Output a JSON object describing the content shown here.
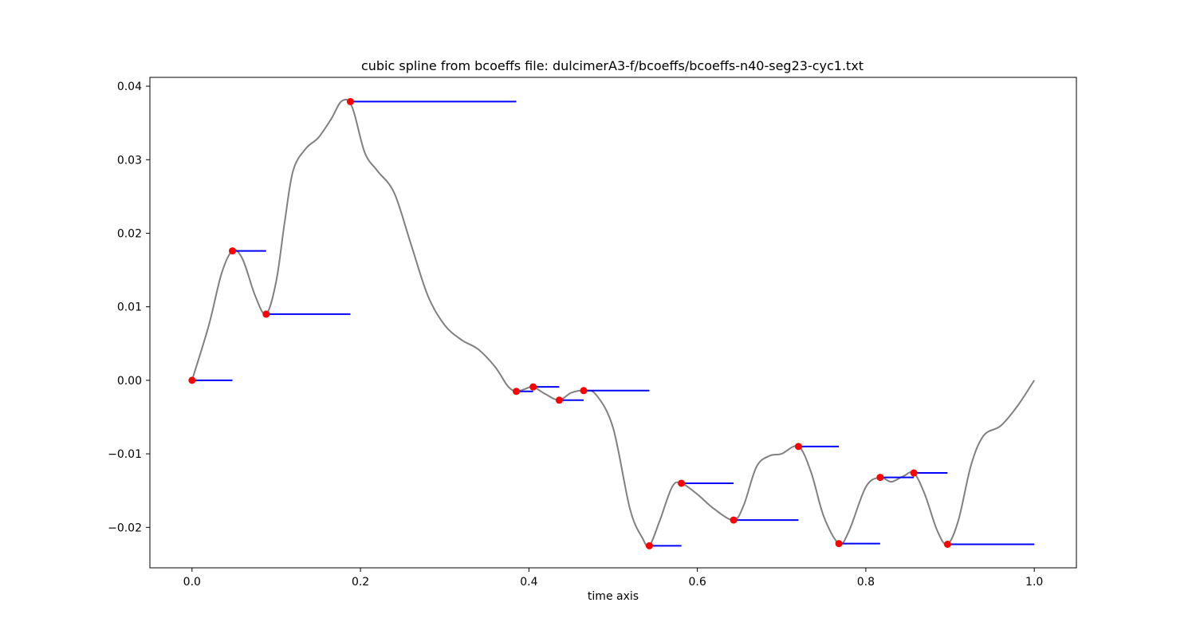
{
  "chart_data": {
    "type": "line",
    "title": "cubic spline from bcoeffs file: dulcimerA3-f/bcoeffs/bcoeffs-n40-seg23-cyc1.txt",
    "xlabel": "time axis",
    "ylabel": "",
    "xlim": [
      -0.05,
      1.05
    ],
    "ylim": [
      -0.0255,
      0.0412
    ],
    "x_ticks": [
      0.0,
      0.2,
      0.4,
      0.6,
      0.8,
      1.0
    ],
    "x_tick_labels": [
      "0.0",
      "0.2",
      "0.4",
      "0.6",
      "0.8",
      "1.0"
    ],
    "y_ticks": [
      -0.02,
      -0.01,
      0.0,
      0.01,
      0.02,
      0.03,
      0.04
    ],
    "y_tick_labels": [
      "−0.02",
      "−0.01",
      "0.00",
      "0.01",
      "0.02",
      "0.03",
      "0.04"
    ],
    "grid": false,
    "series": [
      {
        "kind": "spline",
        "color": "#808080",
        "points": [
          [
            0.0,
            0.0
          ],
          [
            0.02,
            0.0075
          ],
          [
            0.035,
            0.0145
          ],
          [
            0.048,
            0.0176
          ],
          [
            0.06,
            0.0165
          ],
          [
            0.075,
            0.0115
          ],
          [
            0.088,
            0.009
          ],
          [
            0.1,
            0.0135
          ],
          [
            0.11,
            0.0215
          ],
          [
            0.12,
            0.0285
          ],
          [
            0.135,
            0.0315
          ],
          [
            0.15,
            0.033
          ],
          [
            0.165,
            0.0355
          ],
          [
            0.178,
            0.038
          ],
          [
            0.19,
            0.0372
          ],
          [
            0.205,
            0.031
          ],
          [
            0.22,
            0.0285
          ],
          [
            0.24,
            0.0255
          ],
          [
            0.26,
            0.0185
          ],
          [
            0.28,
            0.0115
          ],
          [
            0.3,
            0.0075
          ],
          [
            0.32,
            0.0055
          ],
          [
            0.34,
            0.0042
          ],
          [
            0.36,
            0.0018
          ],
          [
            0.375,
            -0.0008
          ],
          [
            0.385,
            -0.0015
          ],
          [
            0.395,
            -0.0012
          ],
          [
            0.405,
            -0.0009
          ],
          [
            0.42,
            -0.0019
          ],
          [
            0.436,
            -0.0027
          ],
          [
            0.45,
            -0.0017
          ],
          [
            0.465,
            -0.0014
          ],
          [
            0.48,
            -0.002
          ],
          [
            0.5,
            -0.0065
          ],
          [
            0.52,
            -0.0175
          ],
          [
            0.535,
            -0.0215
          ],
          [
            0.543,
            -0.0225
          ],
          [
            0.555,
            -0.0192
          ],
          [
            0.57,
            -0.0145
          ],
          [
            0.581,
            -0.014
          ],
          [
            0.6,
            -0.0155
          ],
          [
            0.62,
            -0.0175
          ],
          [
            0.643,
            -0.019
          ],
          [
            0.655,
            -0.017
          ],
          [
            0.67,
            -0.0118
          ],
          [
            0.685,
            -0.0103
          ],
          [
            0.7,
            -0.01
          ],
          [
            0.72,
            -0.009
          ],
          [
            0.735,
            -0.0125
          ],
          [
            0.75,
            -0.0185
          ],
          [
            0.768,
            -0.0222
          ],
          [
            0.78,
            -0.0205
          ],
          [
            0.8,
            -0.0145
          ],
          [
            0.817,
            -0.0132
          ],
          [
            0.83,
            -0.0138
          ],
          [
            0.845,
            -0.013
          ],
          [
            0.857,
            -0.0126
          ],
          [
            0.87,
            -0.0155
          ],
          [
            0.885,
            -0.0205
          ],
          [
            0.897,
            -0.0223
          ],
          [
            0.91,
            -0.019
          ],
          [
            0.925,
            -0.0115
          ],
          [
            0.94,
            -0.0075
          ],
          [
            0.96,
            -0.0062
          ],
          [
            0.98,
            -0.0035
          ],
          [
            1.0,
            0.0
          ]
        ]
      },
      {
        "kind": "knot-segments",
        "color": "#0000ff",
        "segments": [
          [
            0.0,
            0.048,
            0.0
          ],
          [
            0.048,
            0.088,
            0.0176
          ],
          [
            0.088,
            0.188,
            0.009
          ],
          [
            0.188,
            0.385,
            0.0379
          ],
          [
            0.385,
            0.405,
            -0.0015
          ],
          [
            0.405,
            0.436,
            -0.0009
          ],
          [
            0.436,
            0.465,
            -0.0027
          ],
          [
            0.465,
            0.543,
            -0.0014
          ],
          [
            0.543,
            0.581,
            -0.0225
          ],
          [
            0.581,
            0.643,
            -0.014
          ],
          [
            0.643,
            0.72,
            -0.019
          ],
          [
            0.72,
            0.768,
            -0.009
          ],
          [
            0.768,
            0.817,
            -0.0222
          ],
          [
            0.817,
            0.857,
            -0.0132
          ],
          [
            0.857,
            0.897,
            -0.0126
          ],
          [
            0.897,
            1.0,
            -0.0223
          ]
        ]
      },
      {
        "kind": "knots",
        "color": "#ff0000",
        "points": [
          [
            0.0,
            0.0
          ],
          [
            0.048,
            0.0176
          ],
          [
            0.088,
            0.009
          ],
          [
            0.188,
            0.0379
          ],
          [
            0.385,
            -0.0015
          ],
          [
            0.405,
            -0.0009
          ],
          [
            0.436,
            -0.0027
          ],
          [
            0.465,
            -0.0014
          ],
          [
            0.543,
            -0.0225
          ],
          [
            0.581,
            -0.014
          ],
          [
            0.643,
            -0.019
          ],
          [
            0.72,
            -0.009
          ],
          [
            0.768,
            -0.0222
          ],
          [
            0.817,
            -0.0132
          ],
          [
            0.857,
            -0.0126
          ],
          [
            0.897,
            -0.0223
          ]
        ]
      }
    ]
  }
}
